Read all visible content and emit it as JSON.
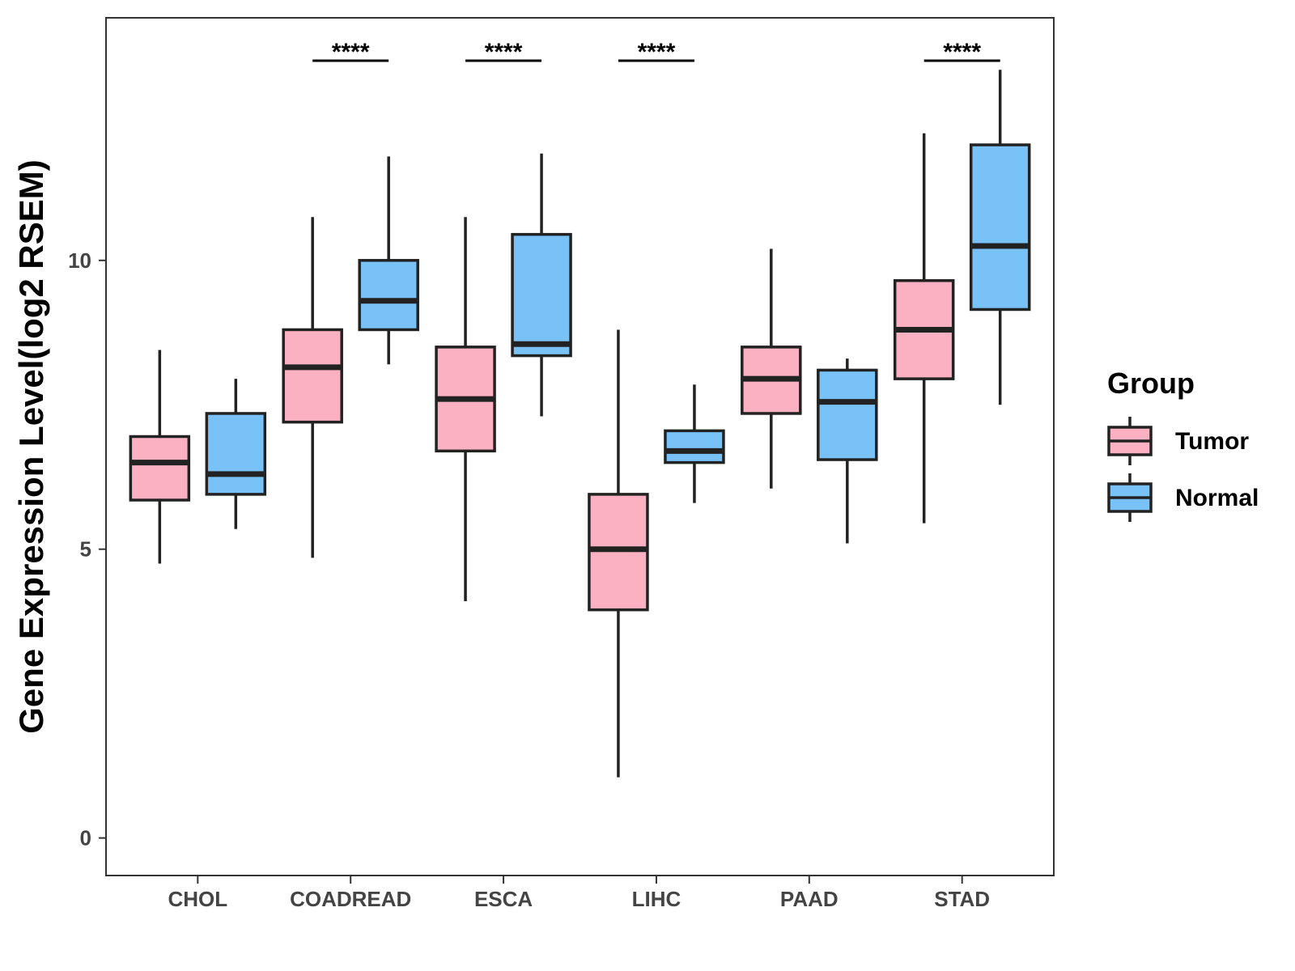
{
  "chart_data": {
    "type": "boxplot",
    "ylabel": "Gene Expression Level(log2 RSEM)",
    "xlabel": "",
    "ylim": [
      -0.65,
      14.2
    ],
    "yticks": [
      0,
      5,
      10
    ],
    "categories": [
      "CHOL",
      "COADREAD",
      "ESCA",
      "LIHC",
      "PAAD",
      "STAD"
    ],
    "legend": {
      "title": "Group",
      "position": "right"
    },
    "grid": false,
    "series": [
      {
        "name": "Tumor",
        "color": "#FBB1C2",
        "boxes": [
          {
            "category": "CHOL",
            "min": 4.75,
            "q1": 5.85,
            "median": 6.5,
            "q3": 6.95,
            "max": 8.45
          },
          {
            "category": "COADREAD",
            "min": 4.85,
            "q1": 7.2,
            "median": 8.15,
            "q3": 8.8,
            "max": 10.75
          },
          {
            "category": "ESCA",
            "min": 4.1,
            "q1": 6.7,
            "median": 7.6,
            "q3": 8.5,
            "max": 10.75
          },
          {
            "category": "LIHC",
            "min": 1.05,
            "q1": 3.95,
            "median": 5.0,
            "q3": 5.95,
            "max": 8.8
          },
          {
            "category": "PAAD",
            "min": 6.05,
            "q1": 7.35,
            "median": 7.95,
            "q3": 8.5,
            "max": 10.2
          },
          {
            "category": "STAD",
            "min": 5.45,
            "q1": 7.95,
            "median": 8.8,
            "q3": 9.65,
            "max": 12.2
          }
        ]
      },
      {
        "name": "Normal",
        "color": "#78C2F8",
        "boxes": [
          {
            "category": "CHOL",
            "min": 5.35,
            "q1": 5.95,
            "median": 6.3,
            "q3": 7.35,
            "max": 7.95
          },
          {
            "category": "COADREAD",
            "min": 8.2,
            "q1": 8.8,
            "median": 9.3,
            "q3": 10.0,
            "max": 11.8
          },
          {
            "category": "ESCA",
            "min": 7.3,
            "q1": 8.35,
            "median": 8.55,
            "q3": 10.45,
            "max": 11.85
          },
          {
            "category": "LIHC",
            "min": 5.8,
            "q1": 6.5,
            "median": 6.7,
            "q3": 7.05,
            "max": 7.85
          },
          {
            "category": "PAAD",
            "min": 5.1,
            "q1": 6.55,
            "median": 7.55,
            "q3": 8.1,
            "max": 8.3
          },
          {
            "category": "STAD",
            "min": 7.5,
            "q1": 9.15,
            "median": 10.25,
            "q3": 12.0,
            "max": 13.3
          }
        ]
      }
    ],
    "annotations": [
      {
        "category": "COADREAD",
        "text": "****"
      },
      {
        "category": "ESCA",
        "text": "****"
      },
      {
        "category": "LIHC",
        "text": "****"
      },
      {
        "category": "STAD",
        "text": "****"
      }
    ]
  }
}
